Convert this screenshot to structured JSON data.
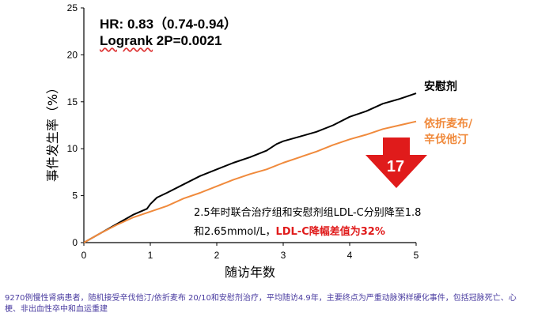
{
  "chart_data": {
    "type": "line",
    "title": "",
    "xlabel": "随访年数",
    "ylabel": "事件发生率（%）",
    "xlim": [
      0,
      5
    ],
    "ylim": [
      0,
      25
    ],
    "x_ticks": [
      0,
      1,
      2,
      3,
      4,
      5
    ],
    "y_ticks": [
      0,
      5,
      10,
      15,
      20,
      25
    ],
    "series": [
      {
        "name": "安慰剂",
        "color": "#000000",
        "x": [
          0,
          0.1,
          0.25,
          0.5,
          0.75,
          0.95,
          1.0,
          1.1,
          1.25,
          1.5,
          1.75,
          2.0,
          2.25,
          2.5,
          2.75,
          2.9,
          3.0,
          3.25,
          3.5,
          3.75,
          4.0,
          4.25,
          4.5,
          4.75,
          5.0
        ],
        "y": [
          0,
          0.4,
          1.0,
          2.0,
          3.0,
          3.6,
          4.1,
          4.8,
          5.3,
          6.2,
          7.1,
          7.8,
          8.5,
          9.1,
          9.8,
          10.5,
          10.8,
          11.3,
          11.8,
          12.5,
          13.4,
          14.0,
          14.8,
          15.3,
          15.9
        ]
      },
      {
        "name": "依折麦布/辛伐他汀",
        "color": "#f08a3c",
        "x": [
          0,
          0.1,
          0.25,
          0.5,
          0.75,
          1.0,
          1.25,
          1.5,
          1.75,
          2.0,
          2.25,
          2.5,
          2.75,
          3.0,
          3.25,
          3.5,
          3.75,
          4.0,
          4.25,
          4.5,
          4.75,
          5.0
        ],
        "y": [
          0,
          0.4,
          1.0,
          1.9,
          2.7,
          3.3,
          3.9,
          4.7,
          5.3,
          6.0,
          6.7,
          7.3,
          7.8,
          8.5,
          9.1,
          9.7,
          10.4,
          11.0,
          11.5,
          12.1,
          12.5,
          12.9
        ]
      }
    ]
  },
  "stats": {
    "hr_text": "HR: 0.83（0.74-0.94）",
    "logrank_word": "Logrank",
    "logrank_value": " 2P=0.0021"
  },
  "labels": {
    "placebo": "安慰剂",
    "treatment_line1": "依折麦布/",
    "treatment_line2": "辛伐他汀"
  },
  "callout": {
    "arrow_number": "17",
    "arrow_color": "#e01b1b",
    "note_line1": "2.5年时联合治疗组和安慰剂组LDL-C分别降至1.8",
    "note_line2_a": "和2.65mmol/L，",
    "note_line2_b": "LDL-C降幅差值为32%"
  },
  "footnote": "9270例慢性肾病患者，随机接受辛伐他汀/依折麦布  20/10和安慰剂治疗，平均随访4.9年，主要终点为严重动脉粥样硬化事件，包括冠脉死亡、心梗、非出血性卒中和血运重建"
}
